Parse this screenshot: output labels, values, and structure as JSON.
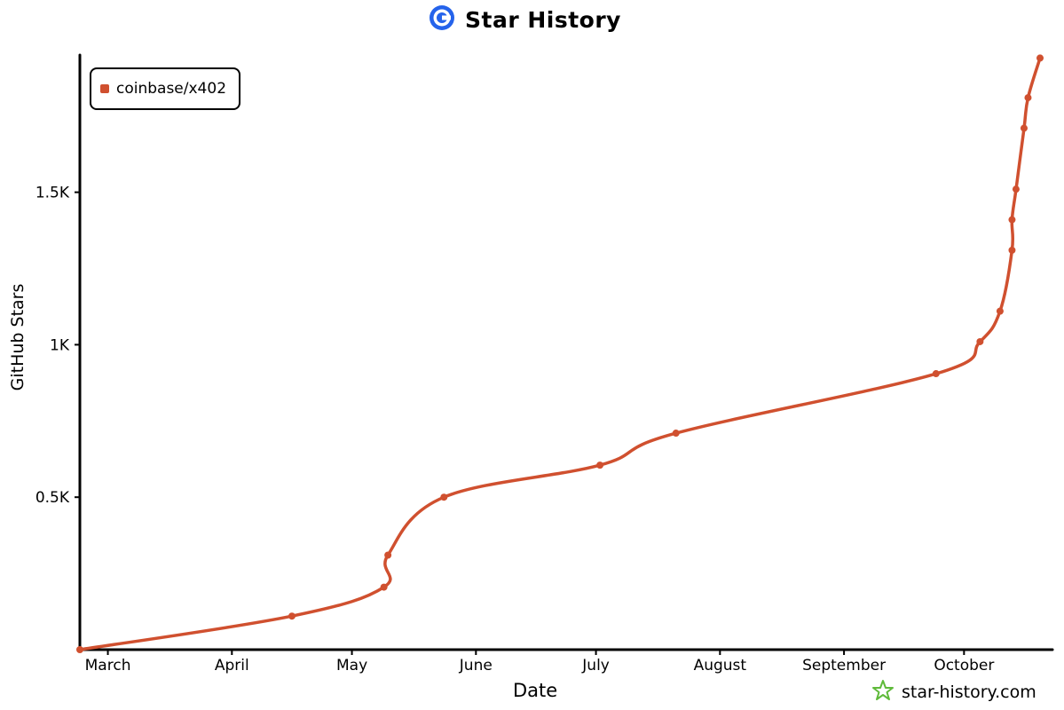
{
  "header": {
    "title": "Star History",
    "logo_icon": "star-history-logo-icon"
  },
  "watermark": {
    "text": "star-history.com",
    "icon": "star-logo-icon",
    "icon_color": "#5fba3a"
  },
  "chart_data": {
    "type": "line",
    "title": "Star History",
    "xlabel": "Date",
    "ylabel": "GitHub Stars",
    "x_ticks": [
      "March",
      "April",
      "May",
      "June",
      "July",
      "August",
      "September",
      "October"
    ],
    "y_ticks": [
      "0.5K",
      "1K",
      "1.5K"
    ],
    "y_tick_values": [
      500,
      1000,
      1500
    ],
    "ylim": [
      0,
      1950
    ],
    "xlim": [
      "2025-02-22",
      "2025-10-20"
    ],
    "grid": false,
    "legend_position": "top-left",
    "series": [
      {
        "name": "coinbase/x402",
        "color": "#d0502f",
        "points": [
          [
            "2025-02-22",
            0
          ],
          [
            "2025-04-16",
            110
          ],
          [
            "2025-05-09",
            205
          ],
          [
            "2025-05-10",
            310
          ],
          [
            "2025-05-24",
            500
          ],
          [
            "2025-07-02",
            605
          ],
          [
            "2025-07-21",
            710
          ],
          [
            "2025-09-24",
            905
          ],
          [
            "2025-10-05",
            1010
          ],
          [
            "2025-10-10",
            1110
          ],
          [
            "2025-10-13",
            1310
          ],
          [
            "2025-10-13",
            1410
          ],
          [
            "2025-10-14",
            1510
          ],
          [
            "2025-10-16",
            1710
          ],
          [
            "2025-10-17",
            1810
          ],
          [
            "2025-10-20",
            1940
          ]
        ]
      }
    ]
  }
}
